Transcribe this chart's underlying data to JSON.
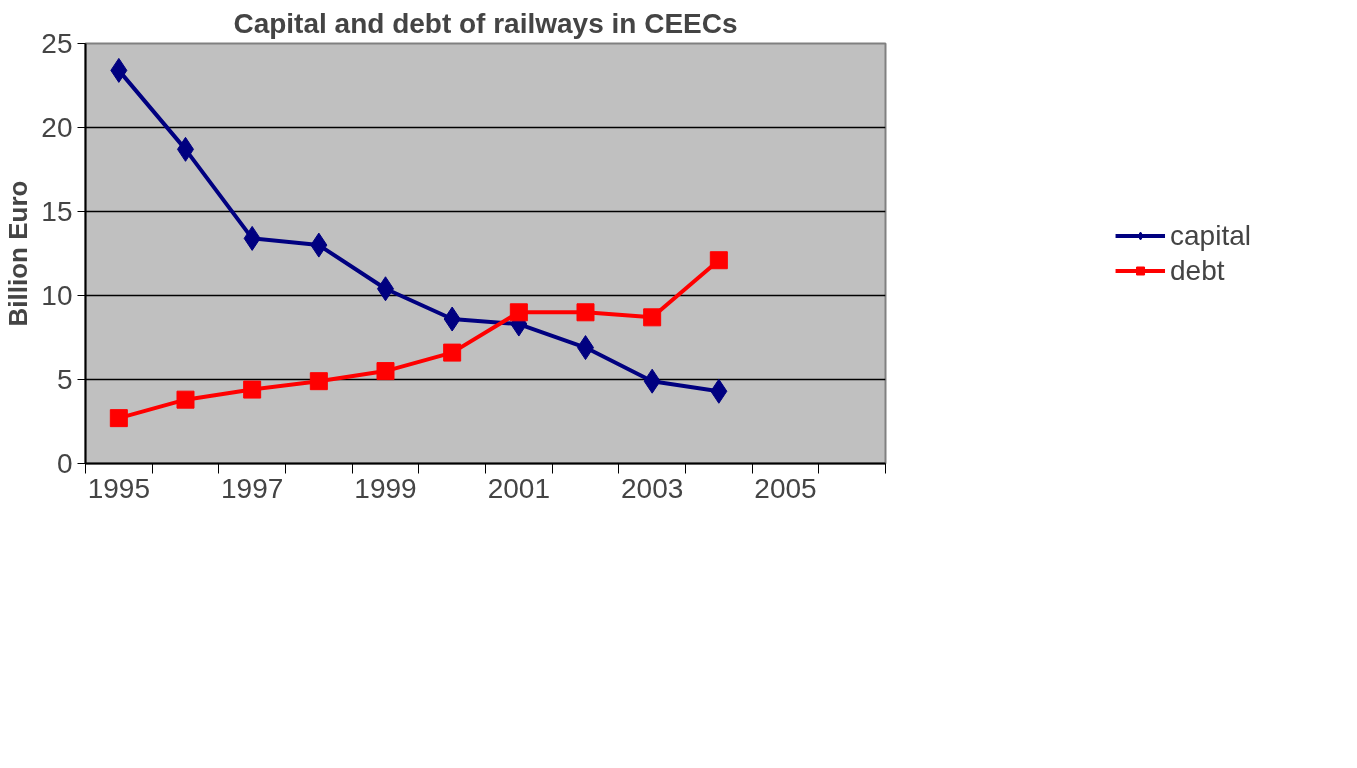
{
  "chart_data": {
    "type": "line",
    "title": "Capital and debt of railways in CEECs",
    "ylabel": "Billion Euro",
    "categories": [
      "1995",
      null,
      "1997",
      null,
      "1999",
      null,
      "2001",
      null,
      "2003",
      null,
      "2005",
      null
    ],
    "series": [
      {
        "name": "capital",
        "color": "#000080",
        "marker": "diamond",
        "values": [
          23.4,
          18.7,
          13.4,
          13.0,
          10.4,
          8.6,
          8.3,
          6.9,
          4.9,
          4.3,
          null,
          null
        ]
      },
      {
        "name": "debt",
        "color": "#ff0000",
        "marker": "square",
        "values": [
          2.7,
          3.8,
          4.4,
          4.9,
          5.5,
          6.6,
          9.0,
          9.0,
          8.7,
          12.1,
          null,
          null
        ]
      }
    ],
    "ylim": [
      0,
      25
    ],
    "yticks": [
      0,
      5,
      10,
      15,
      20,
      25
    ],
    "grid": "y",
    "legend": "right",
    "line_style": "solid"
  }
}
